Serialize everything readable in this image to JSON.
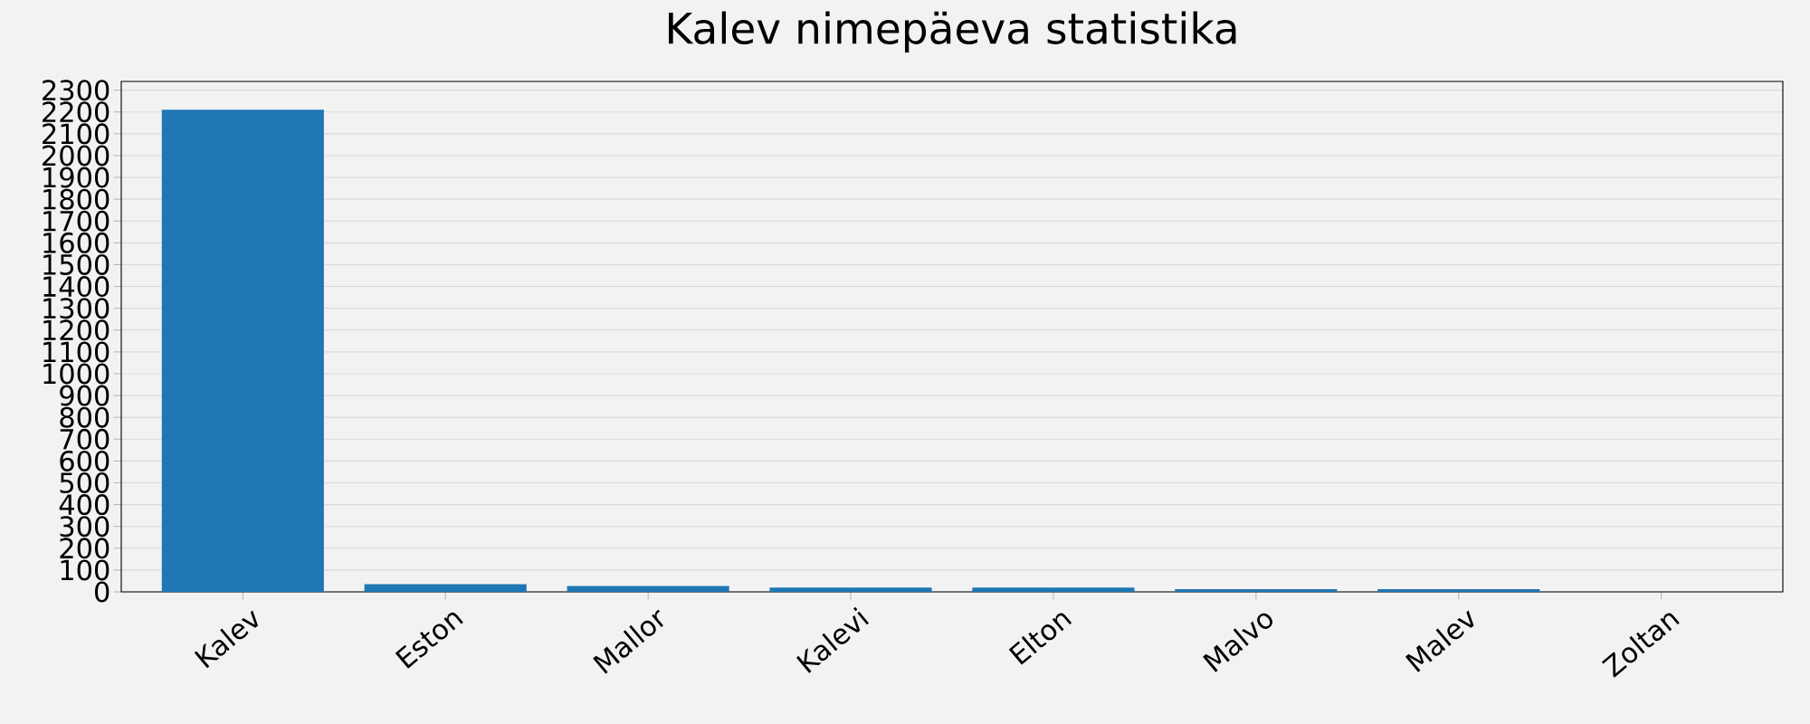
{
  "chart_data": {
    "type": "bar",
    "title": "Kalev nimepäeva statistika",
    "categories": [
      "Kalev",
      "Eston",
      "Mallor",
      "Kalevi",
      "Elton",
      "Malvo",
      "Malev",
      "Zoltan"
    ],
    "values": [
      2210,
      35,
      27,
      20,
      20,
      12,
      12,
      0
    ],
    "color": "#1f77b4",
    "ylim": [
      0,
      2340
    ],
    "yticks": [
      0,
      100,
      200,
      300,
      400,
      500,
      600,
      700,
      800,
      900,
      1000,
      1100,
      1200,
      1300,
      1400,
      1500,
      1600,
      1700,
      1800,
      1900,
      2000,
      2100,
      2200,
      2300
    ],
    "grid": "y"
  }
}
